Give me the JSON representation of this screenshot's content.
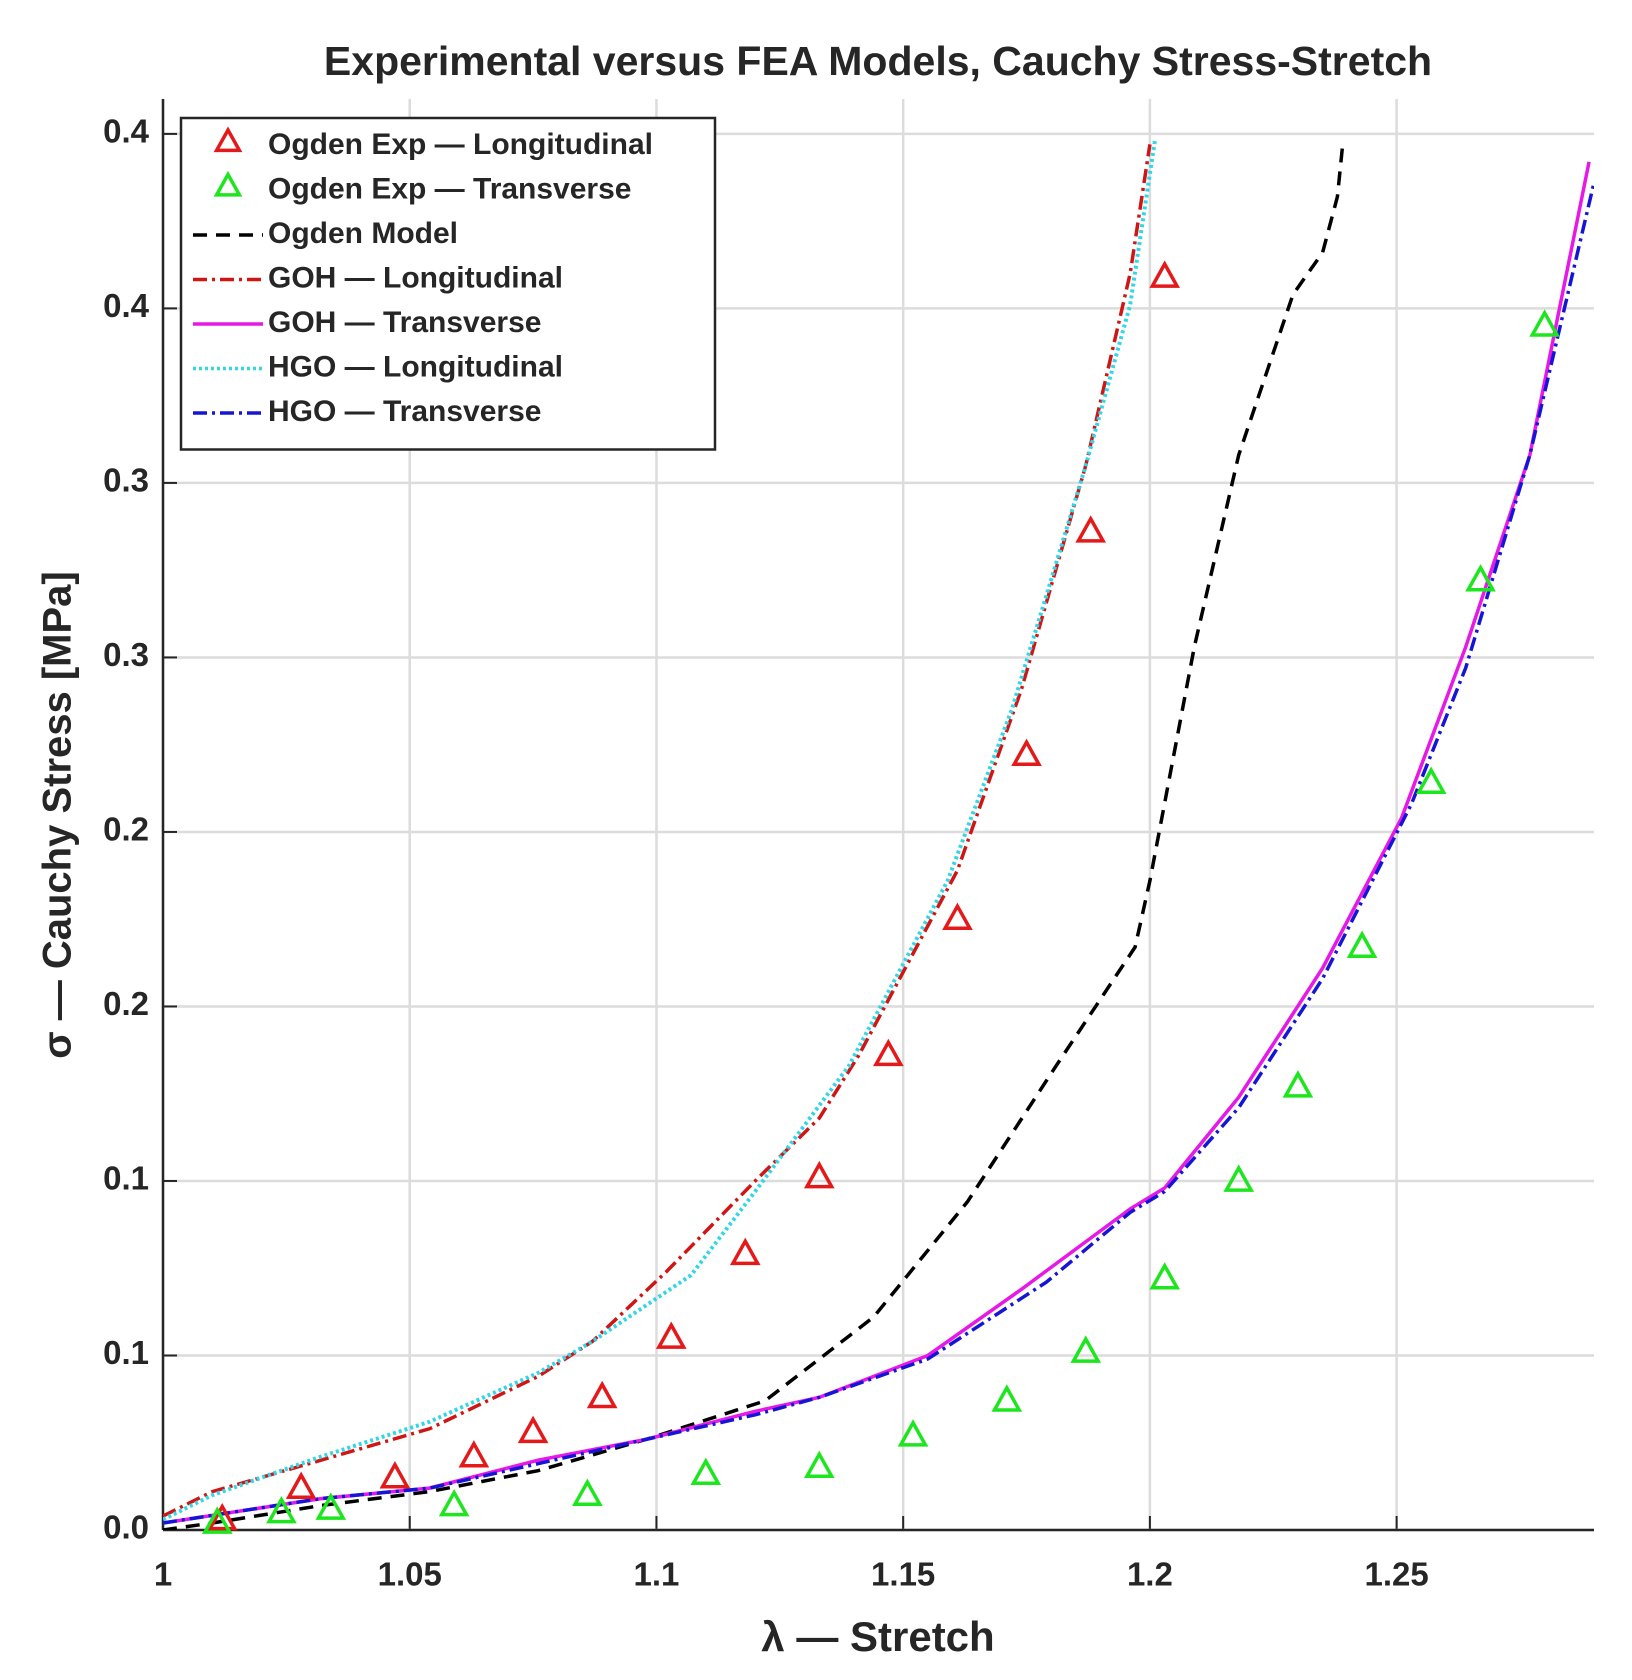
{
  "chart_data": {
    "type": "line",
    "title": "Experimental versus FEA Models, Cauchy Stress-Stretch",
    "xlabel": "λ — Stretch",
    "ylabel": "σ — Cauchy Stress [MPa]",
    "xlim": [
      1,
      1.29
    ],
    "ylim": [
      0,
      0.41
    ],
    "xticks": [
      1,
      1.05,
      1.1,
      1.15,
      1.2,
      1.25
    ],
    "yticks": [
      {
        "value": 0,
        "label": "0.0"
      },
      {
        "value": 0.05,
        "label": "0.1"
      },
      {
        "value": 0.1,
        "label": "0.1"
      },
      {
        "value": 0.15,
        "label": "0.2"
      },
      {
        "value": 0.2,
        "label": "0.2"
      },
      {
        "value": 0.25,
        "label": "0.3"
      },
      {
        "value": 0.3,
        "label": "0.3"
      },
      {
        "value": 0.35,
        "label": "0.4"
      },
      {
        "value": 0.4,
        "label": "0.4"
      }
    ],
    "grid": true,
    "legend": "upper left",
    "series": [
      {
        "name": "Ogden Exp — Longitudinal",
        "color": "#e41a1a",
        "marker": "triangle",
        "linestyle": "none",
        "x": [
          1.012,
          1.028,
          1.047,
          1.063,
          1.075,
          1.089,
          1.103,
          1.118,
          1.133,
          1.147,
          1.161,
          1.175,
          1.188,
          1.203
        ],
        "values": [
          0.003,
          0.012,
          0.015,
          0.021,
          0.028,
          0.038,
          0.055,
          0.079,
          0.101,
          0.136,
          0.175,
          0.222,
          0.286,
          0.359
        ]
      },
      {
        "name": "Ogden Exp — Transverse",
        "color": "#1ee61e",
        "marker": "triangle",
        "linestyle": "none",
        "x": [
          1.011,
          1.024,
          1.034,
          1.059,
          1.086,
          1.11,
          1.133,
          1.152,
          1.171,
          1.187,
          1.203,
          1.218,
          1.23,
          1.243,
          1.257,
          1.267,
          1.28
        ],
        "values": [
          0.002,
          0.005,
          0.006,
          0.007,
          0.01,
          0.016,
          0.018,
          0.027,
          0.037,
          0.051,
          0.072,
          0.1,
          0.127,
          0.167,
          0.214,
          0.272,
          0.345
        ]
      },
      {
        "name": "Ogden Model",
        "color": "#000000",
        "marker": "none",
        "linestyle": "dashed",
        "x": [
          1.0,
          1.01,
          1.032,
          1.054,
          1.076,
          1.098,
          1.122,
          1.144,
          1.163,
          1.181,
          1.197,
          1.2,
          1.209,
          1.218,
          1.229,
          1.235,
          1.238,
          1.239
        ],
        "values": [
          0.0,
          0.002,
          0.007,
          0.011,
          0.017,
          0.026,
          0.037,
          0.061,
          0.094,
          0.133,
          0.167,
          0.186,
          0.253,
          0.308,
          0.354,
          0.366,
          0.382,
          0.396
        ]
      },
      {
        "name": "GOH — Longitudinal",
        "color": "#d01515",
        "marker": "none",
        "linestyle": "dashdot",
        "x": [
          1.0,
          1.01,
          1.032,
          1.054,
          1.076,
          1.087,
          1.102,
          1.12,
          1.133,
          1.141,
          1.161,
          1.174,
          1.187,
          1.196,
          1.2
        ],
        "values": [
          0.004,
          0.011,
          0.02,
          0.029,
          0.044,
          0.054,
          0.074,
          0.1,
          0.118,
          0.136,
          0.189,
          0.241,
          0.305,
          0.36,
          0.397
        ]
      },
      {
        "name": "GOH — Transverse",
        "color": "#e619e6",
        "marker": "none",
        "linestyle": "solid",
        "x": [
          1.0,
          1.032,
          1.054,
          1.076,
          1.098,
          1.12,
          1.133,
          1.155,
          1.174,
          1.196,
          1.203,
          1.218,
          1.235,
          1.251,
          1.264,
          1.277,
          1.289
        ],
        "values": [
          0.002,
          0.009,
          0.012,
          0.02,
          0.026,
          0.034,
          0.038,
          0.05,
          0.069,
          0.092,
          0.098,
          0.124,
          0.161,
          0.204,
          0.253,
          0.308,
          0.392
        ]
      },
      {
        "name": "HGO — Longitudinal",
        "color": "#33d6e6",
        "marker": "none",
        "linestyle": "dotted",
        "x": [
          1.0,
          1.01,
          1.032,
          1.054,
          1.076,
          1.087,
          1.107,
          1.12,
          1.139,
          1.159,
          1.172,
          1.187,
          1.196,
          1.201
        ],
        "values": [
          0.003,
          0.01,
          0.021,
          0.031,
          0.045,
          0.054,
          0.073,
          0.097,
          0.133,
          0.186,
          0.235,
          0.305,
          0.351,
          0.398
        ]
      },
      {
        "name": "HGO — Transverse",
        "color": "#1515d6",
        "marker": "none",
        "linestyle": "dashdot",
        "x": [
          1.0,
          1.032,
          1.054,
          1.076,
          1.098,
          1.12,
          1.133,
          1.155,
          1.179,
          1.196,
          1.203,
          1.218,
          1.235,
          1.253,
          1.264,
          1.277,
          1.29
        ],
        "values": [
          0.002,
          0.009,
          0.012,
          0.019,
          0.026,
          0.033,
          0.038,
          0.049,
          0.071,
          0.091,
          0.097,
          0.121,
          0.158,
          0.208,
          0.247,
          0.308,
          0.386
        ]
      }
    ]
  }
}
